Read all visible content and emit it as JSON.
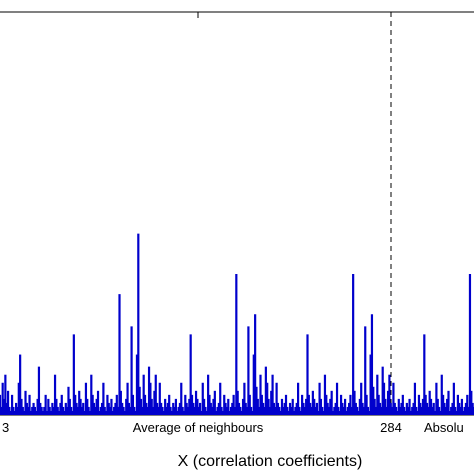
{
  "chart_data": {
    "type": "bar",
    "title": "",
    "xlabel": "X (correlation coefficients)",
    "ylabel": "",
    "tick_labels": [
      {
        "text": "3",
        "anchor": "start"
      },
      {
        "text": "Average of neighbours",
        "anchor": "middle"
      },
      {
        "text": "284",
        "anchor": "middle"
      },
      {
        "text": "Absolu",
        "anchor": "start"
      }
    ],
    "marker_line_index": 284,
    "bar_color": "#0000cc",
    "xlim": [
      0,
      353
    ],
    "ylim": [
      0,
      1.0
    ],
    "grid": false,
    "legend": "none",
    "values": [
      0.05,
      0.02,
      0.08,
      0.04,
      0.1,
      0.03,
      0.06,
      0.02,
      0.01,
      0.05,
      0.02,
      0.01,
      0.03,
      0.02,
      0.08,
      0.15,
      0.04,
      0.02,
      0.01,
      0.06,
      0.03,
      0.02,
      0.05,
      0.01,
      0.02,
      0.03,
      0.02,
      0.01,
      0.04,
      0.12,
      0.03,
      0.02,
      0.01,
      0.02,
      0.05,
      0.01,
      0.04,
      0.02,
      0.01,
      0.03,
      0.02,
      0.1,
      0.04,
      0.02,
      0.01,
      0.03,
      0.05,
      0.02,
      0.01,
      0.03,
      0.02,
      0.07,
      0.04,
      0.02,
      0.01,
      0.2,
      0.05,
      0.03,
      0.02,
      0.06,
      0.04,
      0.02,
      0.03,
      0.01,
      0.08,
      0.04,
      0.02,
      0.01,
      0.1,
      0.05,
      0.03,
      0.02,
      0.04,
      0.06,
      0.01,
      0.02,
      0.03,
      0.08,
      0.02,
      0.01,
      0.05,
      0.03,
      0.02,
      0.04,
      0.01,
      0.02,
      0.03,
      0.05,
      0.02,
      0.3,
      0.06,
      0.03,
      0.02,
      0.01,
      0.04,
      0.08,
      0.03,
      0.02,
      0.22,
      0.05,
      0.02,
      0.01,
      0.15,
      0.45,
      0.07,
      0.04,
      0.02,
      0.1,
      0.05,
      0.03,
      0.02,
      0.12,
      0.08,
      0.04,
      0.02,
      0.06,
      0.1,
      0.03,
      0.02,
      0.08,
      0.03,
      0.02,
      0.01,
      0.04,
      0.02,
      0.03,
      0.05,
      0.02,
      0.01,
      0.03,
      0.02,
      0.04,
      0.01,
      0.02,
      0.03,
      0.08,
      0.02,
      0.01,
      0.05,
      0.03,
      0.02,
      0.04,
      0.2,
      0.05,
      0.03,
      0.02,
      0.06,
      0.04,
      0.02,
      0.03,
      0.01,
      0.08,
      0.04,
      0.02,
      0.01,
      0.1,
      0.05,
      0.03,
      0.02,
      0.04,
      0.06,
      0.01,
      0.02,
      0.03,
      0.08,
      0.02,
      0.01,
      0.05,
      0.03,
      0.02,
      0.04,
      0.01,
      0.02,
      0.03,
      0.05,
      0.02,
      0.35,
      0.06,
      0.03,
      0.02,
      0.01,
      0.04,
      0.08,
      0.03,
      0.02,
      0.22,
      0.05,
      0.02,
      0.01,
      0.15,
      0.25,
      0.07,
      0.04,
      0.02,
      0.1,
      0.05,
      0.03,
      0.02,
      0.12,
      0.08,
      0.04,
      0.02,
      0.06,
      0.1,
      0.03,
      0.02,
      0.08,
      0.03,
      0.02,
      0.01,
      0.04,
      0.02,
      0.03,
      0.05,
      0.02,
      0.01,
      0.03,
      0.02,
      0.04,
      0.01,
      0.02,
      0.03,
      0.08,
      0.02,
      0.01,
      0.05,
      0.03,
      0.02,
      0.04,
      0.2,
      0.05,
      0.03,
      0.02,
      0.06,
      0.04,
      0.02,
      0.03,
      0.01,
      0.08,
      0.04,
      0.02,
      0.01,
      0.1,
      0.05,
      0.03,
      0.02,
      0.04,
      0.06,
      0.01,
      0.02,
      0.03,
      0.08,
      0.02,
      0.01,
      0.05,
      0.03,
      0.02,
      0.04,
      0.01,
      0.02,
      0.03,
      0.05,
      0.02,
      0.35,
      0.06,
      0.03,
      0.02,
      0.01,
      0.04,
      0.08,
      0.03,
      0.02,
      0.22,
      0.05,
      0.02,
      0.01,
      0.15,
      0.25,
      0.07,
      0.04,
      0.02,
      0.1,
      0.05,
      0.03,
      0.02,
      0.12,
      0.08,
      0.04,
      0.02,
      0.06,
      0.1,
      0.03,
      0.02,
      0.08,
      0.03,
      0.02,
      0.01,
      0.04,
      0.02,
      0.03,
      0.05,
      0.02,
      0.01,
      0.03,
      0.02,
      0.04,
      0.01,
      0.02,
      0.03,
      0.08,
      0.02,
      0.01,
      0.05,
      0.03,
      0.02,
      0.04,
      0.2,
      0.05,
      0.03,
      0.02,
      0.06,
      0.04,
      0.02,
      0.03,
      0.01,
      0.08,
      0.04,
      0.02,
      0.01,
      0.1,
      0.05,
      0.03,
      0.02,
      0.04,
      0.06,
      0.01,
      0.02,
      0.03,
      0.08,
      0.02,
      0.01,
      0.05,
      0.03,
      0.02,
      0.04,
      0.01,
      0.02,
      0.03,
      0.05,
      0.02,
      0.35,
      0.06,
      0.03,
      0.02,
      0.01,
      0.04,
      0.08,
      0.03,
      0.02,
      0.22,
      0.05,
      0.02,
      0.01,
      0.15,
      0.25,
      0.07,
      0.04,
      0.02,
      0.1,
      0.05
    ]
  }
}
